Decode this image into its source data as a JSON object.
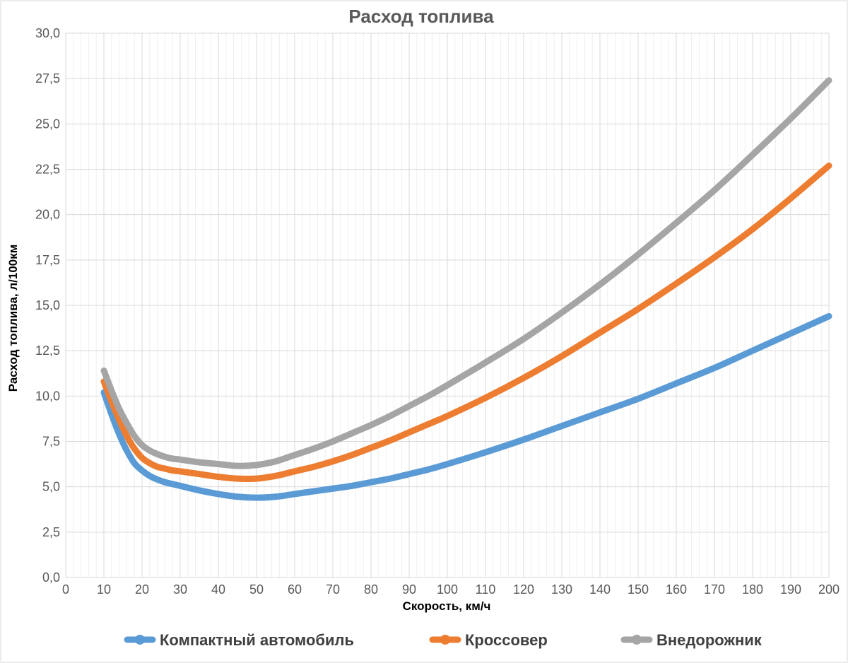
{
  "chart_data": {
    "type": "line",
    "title": "Расход топлива",
    "xlabel": "Скорость, км/ч",
    "ylabel": "Расход топлива, л/100км",
    "xlim": [
      0,
      200
    ],
    "ylim": [
      0,
      30
    ],
    "x_ticks": [
      "0",
      "10",
      "20",
      "30",
      "40",
      "50",
      "60",
      "70",
      "80",
      "90",
      "100",
      "110",
      "120",
      "130",
      "140",
      "150",
      "160",
      "170",
      "180",
      "190",
      "200"
    ],
    "y_ticks": [
      "0,0",
      "2,5",
      "5,0",
      "7,5",
      "10,0",
      "12,5",
      "15,0",
      "17,5",
      "20,0",
      "22,5",
      "25,0",
      "27,5",
      "30,0"
    ],
    "grid": true,
    "legend_position": "bottom",
    "x": [
      10,
      12,
      14,
      16,
      18,
      20,
      22,
      24,
      26,
      28,
      30,
      35,
      40,
      45,
      50,
      55,
      60,
      65,
      70,
      75,
      80,
      85,
      90,
      95,
      100,
      110,
      120,
      130,
      140,
      150,
      160,
      170,
      180,
      190,
      200
    ],
    "series": [
      {
        "name": "Компактный автомобиль",
        "color": "#5B9BD5",
        "values": [
          10.2,
          9.0,
          7.9,
          7.0,
          6.3,
          5.9,
          5.6,
          5.4,
          5.25,
          5.15,
          5.05,
          4.8,
          4.6,
          4.45,
          4.4,
          4.45,
          4.6,
          4.75,
          4.9,
          5.05,
          5.25,
          5.45,
          5.7,
          5.95,
          6.25,
          6.9,
          7.6,
          8.35,
          9.1,
          9.85,
          10.7,
          11.55,
          12.5,
          13.45,
          14.4
        ]
      },
      {
        "name": "Кроссовер",
        "color": "#ED7D31",
        "values": [
          10.8,
          9.7,
          8.7,
          7.8,
          7.1,
          6.6,
          6.3,
          6.1,
          6.0,
          5.9,
          5.85,
          5.7,
          5.55,
          5.45,
          5.45,
          5.6,
          5.85,
          6.1,
          6.4,
          6.75,
          7.15,
          7.55,
          8.0,
          8.45,
          8.9,
          9.9,
          11.0,
          12.2,
          13.5,
          14.8,
          16.2,
          17.65,
          19.2,
          20.9,
          22.7
        ]
      },
      {
        "name": "Внедорожник",
        "color": "#A5A5A5",
        "values": [
          11.4,
          10.3,
          9.3,
          8.5,
          7.8,
          7.3,
          7.0,
          6.8,
          6.65,
          6.55,
          6.5,
          6.35,
          6.25,
          6.15,
          6.2,
          6.4,
          6.75,
          7.1,
          7.5,
          7.95,
          8.4,
          8.9,
          9.45,
          10.0,
          10.6,
          11.85,
          13.15,
          14.6,
          16.15,
          17.8,
          19.55,
          21.35,
          23.3,
          25.3,
          27.4
        ]
      }
    ]
  }
}
